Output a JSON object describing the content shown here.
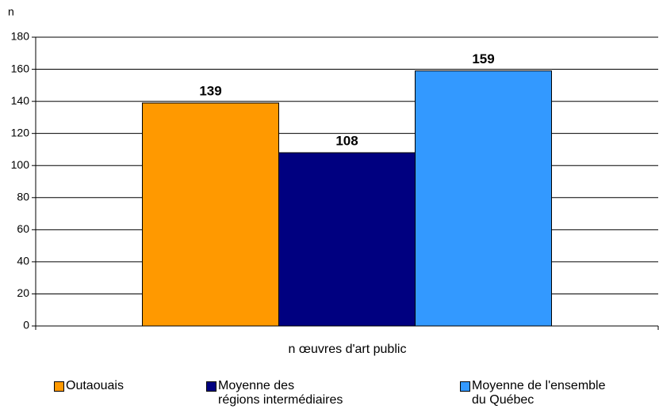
{
  "chart_data": {
    "type": "bar",
    "y_axis_label": "n",
    "x_axis_label": "n œuvres d'art public",
    "series": [
      {
        "name": "Outaouais",
        "color": "#ff9900",
        "values": [
          139
        ]
      },
      {
        "name": "Moyenne des\nrégions intermédiaires",
        "color": "#000080",
        "values": [
          108
        ]
      },
      {
        "name": "Moyenne de l'ensemble\ndu Québec",
        "color": "#3399ff",
        "values": [
          159
        ]
      }
    ],
    "ylim": [
      0,
      180
    ],
    "yticks": [
      0,
      20,
      40,
      60,
      80,
      100,
      120,
      140,
      160,
      180
    ],
    "grid": true,
    "legend": "bottom"
  }
}
